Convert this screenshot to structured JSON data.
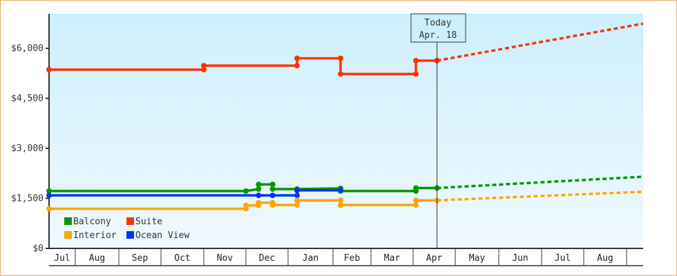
{
  "chart_data": {
    "type": "line",
    "title": "",
    "xlabel": "",
    "ylabel": "",
    "ylim": [
      0,
      7000
    ],
    "y_ticks": [
      {
        "value": 0,
        "label": "$0"
      },
      {
        "value": 1500,
        "label": "$1,500"
      },
      {
        "value": 3000,
        "label": "$3,000"
      },
      {
        "value": 4500,
        "label": "$4,500"
      },
      {
        "value": 6000,
        "label": "$6,000"
      }
    ],
    "x_ticks": [
      "Jul",
      "Aug",
      "Sep",
      "Oct",
      "Nov",
      "Dec",
      "Jan",
      "Feb",
      "Mar",
      "Apr",
      "May",
      "Jun",
      "Jul",
      "Aug"
    ],
    "today_marker": {
      "line1": "Today",
      "line2": "Apr. 18"
    },
    "legend": [
      {
        "name": "Balcony",
        "color": "#009900"
      },
      {
        "name": "Suite",
        "color": "#ff3300"
      },
      {
        "name": "Interior",
        "color": "#ffa500"
      },
      {
        "name": "Ocean View",
        "color": "#0033ff"
      }
    ],
    "series": [
      {
        "name": "Suite",
        "color": "#ff3300",
        "history": [
          [
            "Jul 1",
            5360
          ],
          [
            "Nov 1",
            5360
          ],
          [
            "Nov 1",
            5480
          ],
          [
            "Jan 7",
            5480
          ],
          [
            "Jan 7",
            5700
          ],
          [
            "Feb 7",
            5700
          ],
          [
            "Feb 7",
            5230
          ],
          [
            "Apr 3",
            5230
          ],
          [
            "Apr 3",
            5630
          ],
          [
            "Apr 18",
            5630
          ]
        ],
        "projection": [
          [
            "Apr 18",
            5630
          ],
          [
            "Sep 1",
            6740
          ]
        ]
      },
      {
        "name": "Balcony",
        "color": "#009900",
        "history": [
          [
            "Jul 1",
            1720
          ],
          [
            "Dec 1",
            1720
          ],
          [
            "Dec 10",
            1780
          ],
          [
            "Dec 10",
            1920
          ],
          [
            "Dec 20",
            1920
          ],
          [
            "Dec 20",
            1780
          ],
          [
            "Jan 7",
            1780
          ],
          [
            "Feb 7",
            1800
          ],
          [
            "Feb 7",
            1720
          ],
          [
            "Apr 3",
            1720
          ],
          [
            "Apr 3",
            1810
          ],
          [
            "Apr 18",
            1810
          ]
        ],
        "projection": [
          [
            "Apr 18",
            1810
          ],
          [
            "Sep 1",
            2150
          ]
        ]
      },
      {
        "name": "Ocean View",
        "color": "#0033ff",
        "history": [
          [
            "Jul 1",
            1590
          ],
          [
            "Dec 10",
            1590
          ],
          [
            "Dec 20",
            1590
          ],
          [
            "Jan 7",
            1590
          ],
          [
            "Jan 7",
            1740
          ],
          [
            "Feb 7",
            1740
          ]
        ],
        "projection": []
      },
      {
        "name": "Interior",
        "color": "#ffa500",
        "history": [
          [
            "Jul 1",
            1190
          ],
          [
            "Dec 1",
            1190
          ],
          [
            "Dec 1",
            1290
          ],
          [
            "Dec 10",
            1290
          ],
          [
            "Dec 10",
            1370
          ],
          [
            "Dec 20",
            1370
          ],
          [
            "Dec 20",
            1300
          ],
          [
            "Jan 7",
            1300
          ],
          [
            "Jan 7",
            1440
          ],
          [
            "Feb 7",
            1440
          ],
          [
            "Feb 7",
            1300
          ],
          [
            "Apr 3",
            1300
          ],
          [
            "Apr 3",
            1440
          ],
          [
            "Apr 18",
            1440
          ]
        ],
        "projection": [
          [
            "Apr 18",
            1440
          ],
          [
            "Sep 1",
            1700
          ]
        ]
      }
    ]
  }
}
